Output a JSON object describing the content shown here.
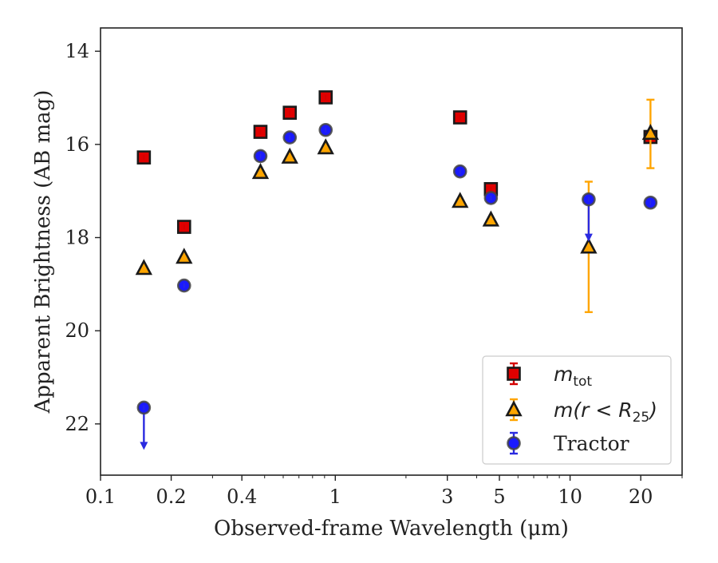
{
  "chart_data": {
    "type": "scatter",
    "title": "",
    "xlabel": "Observed-frame Wavelength (μm)",
    "ylabel": "Apparent Brightness (AB mag)",
    "x_scale": "log",
    "xlim": [
      0.1,
      30
    ],
    "ylim": [
      23.1,
      13.5
    ],
    "y_inverted": true,
    "x_ticks": [
      {
        "value": 0.1,
        "label": "0.1"
      },
      {
        "value": 0.2,
        "label": "0.2"
      },
      {
        "value": 0.4,
        "label": "0.4"
      },
      {
        "value": 1,
        "label": "1"
      },
      {
        "value": 3,
        "label": "3"
      },
      {
        "value": 5,
        "label": "5"
      },
      {
        "value": 10,
        "label": "10"
      },
      {
        "value": 20,
        "label": "20"
      }
    ],
    "y_ticks": [
      {
        "value": 14,
        "label": "14"
      },
      {
        "value": 16,
        "label": "16"
      },
      {
        "value": 18,
        "label": "18"
      },
      {
        "value": 20,
        "label": "20"
      },
      {
        "value": 22,
        "label": "22"
      }
    ],
    "grid": false,
    "legend_position": "bottom-right",
    "series": [
      {
        "name": "m_tot",
        "legend_main": "m",
        "legend_sub": "tot",
        "marker": "square",
        "face_color": "#e00000",
        "edge_color": "#1a1a1a",
        "error_color": "#d40000",
        "points": [
          {
            "x": 0.153,
            "y": 16.28
          },
          {
            "x": 0.227,
            "y": 17.77
          },
          {
            "x": 0.48,
            "y": 15.73
          },
          {
            "x": 0.64,
            "y": 15.32
          },
          {
            "x": 0.91,
            "y": 14.99
          },
          {
            "x": 3.4,
            "y": 15.42
          },
          {
            "x": 4.6,
            "y": 16.96
          },
          {
            "x": 22,
            "y": 15.84
          }
        ]
      },
      {
        "name": "m(r<R_25)",
        "legend_main": "m(r < R",
        "legend_sub": "25",
        "legend_end": ")",
        "marker": "triangle",
        "face_color": "#ffa500",
        "edge_color": "#1a1a1a",
        "error_color": "#ffa500",
        "points": [
          {
            "x": 0.153,
            "y": 18.66
          },
          {
            "x": 0.227,
            "y": 18.42
          },
          {
            "x": 0.48,
            "y": 16.6
          },
          {
            "x": 0.64,
            "y": 16.27
          },
          {
            "x": 0.91,
            "y": 16.07
          },
          {
            "x": 3.4,
            "y": 17.22
          },
          {
            "x": 4.6,
            "y": 17.62
          },
          {
            "x": 12,
            "y": 18.2,
            "err": [
              1.4,
              1.4
            ]
          },
          {
            "x": 22,
            "y": 15.76,
            "err": [
              0.75,
              0.72
            ]
          }
        ]
      },
      {
        "name": "Tractor",
        "legend_main": "Tractor",
        "marker": "circle",
        "face_color": "#1a1aff",
        "edge_color": "#444444",
        "error_color": "#2a2ae0",
        "points": [
          {
            "x": 0.153,
            "y": 21.65,
            "upper_limit": true
          },
          {
            "x": 0.227,
            "y": 19.03
          },
          {
            "x": 0.48,
            "y": 16.25
          },
          {
            "x": 0.64,
            "y": 15.85
          },
          {
            "x": 0.91,
            "y": 15.69
          },
          {
            "x": 3.4,
            "y": 16.58
          },
          {
            "x": 4.6,
            "y": 17.15
          },
          {
            "x": 12,
            "y": 17.18,
            "upper_limit": true
          },
          {
            "x": 22,
            "y": 17.25
          }
        ]
      }
    ]
  }
}
